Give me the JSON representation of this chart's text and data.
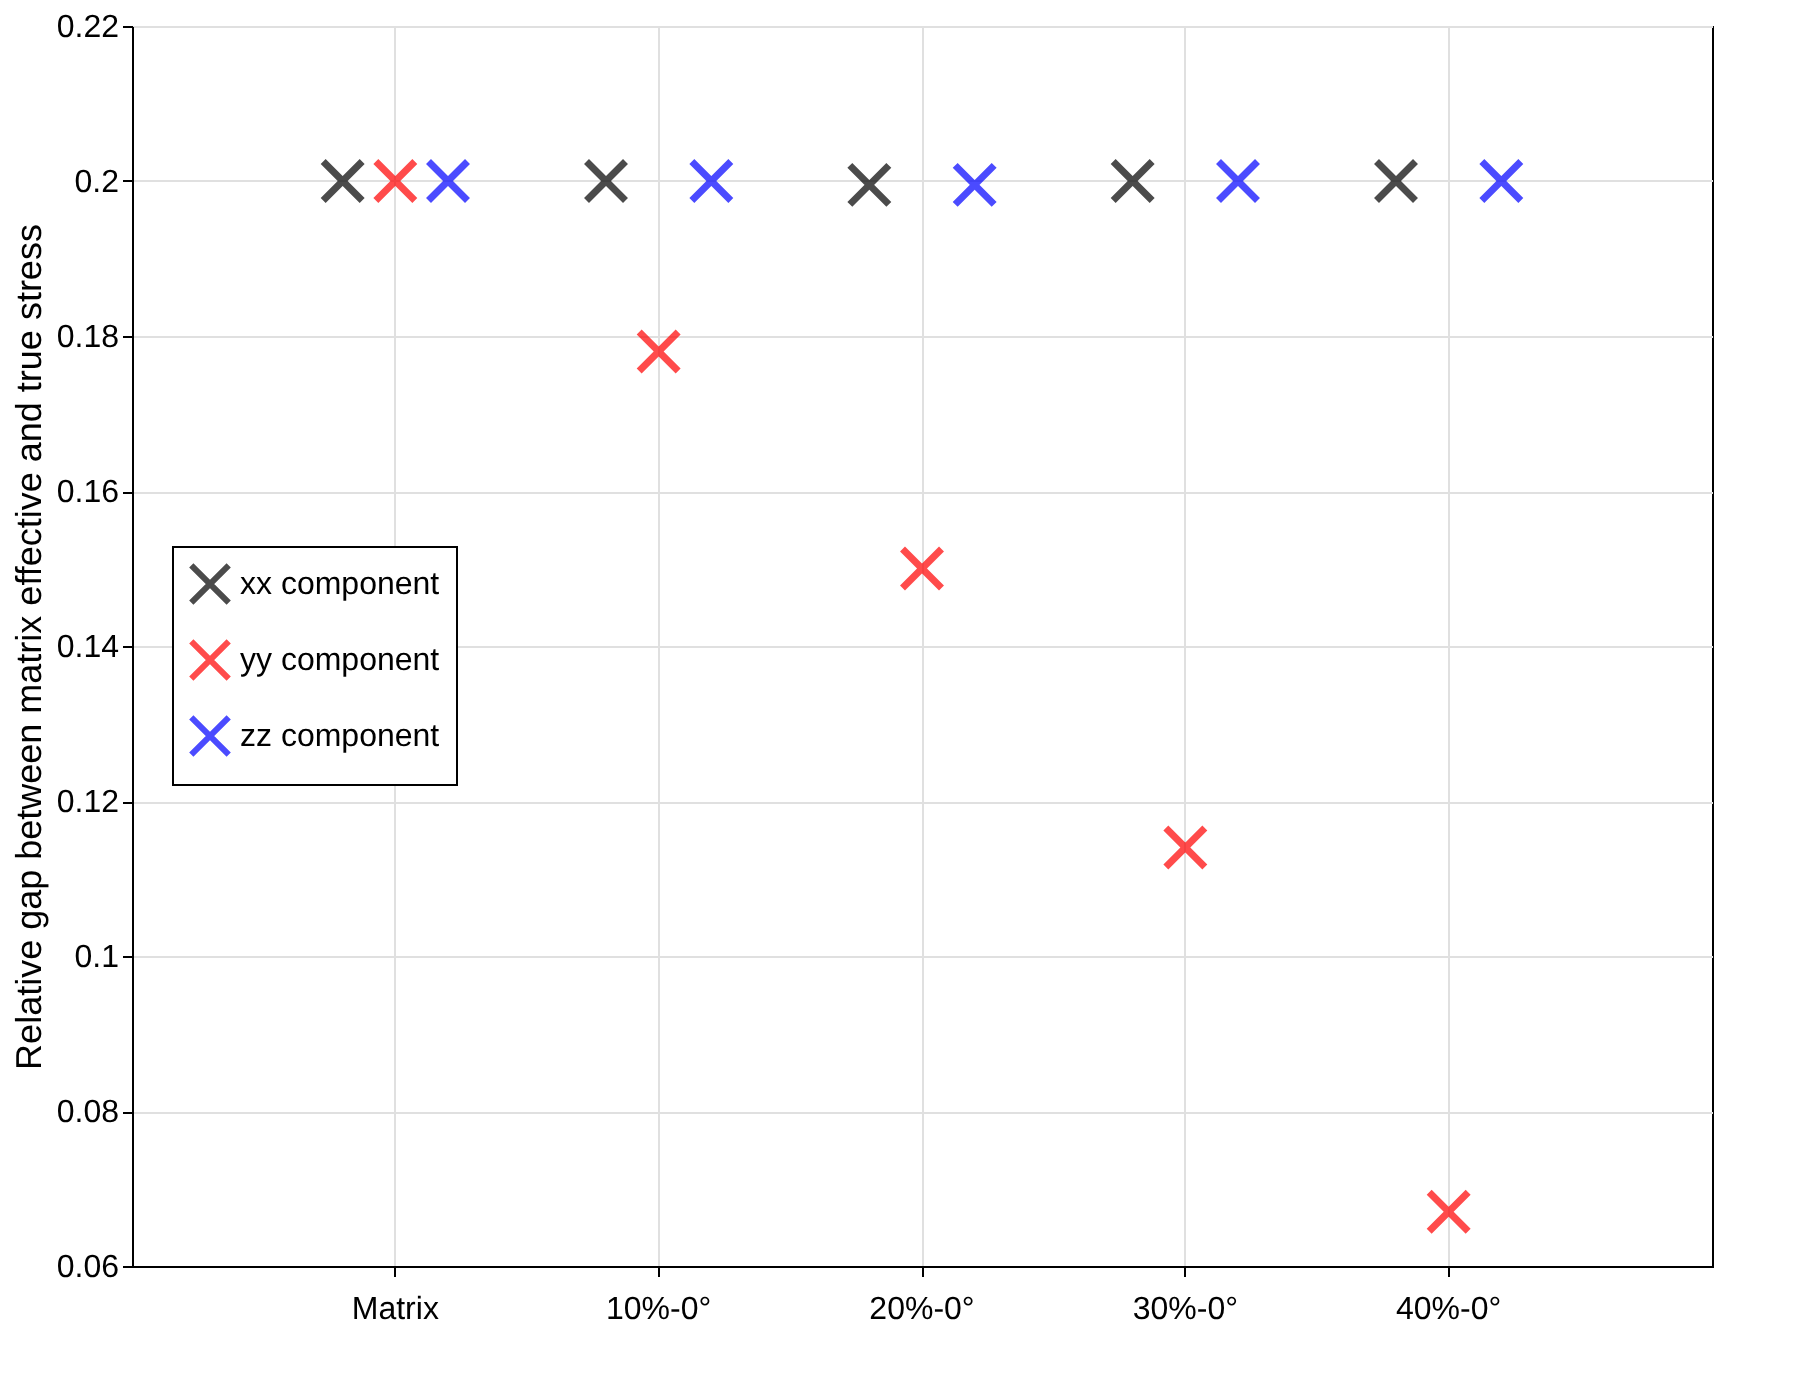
{
  "chart_data": {
    "type": "scatter",
    "ylabel": "Relative gap between matrix effective and true stress",
    "categories": [
      "Matrix",
      "10%-0°",
      "20%-0°",
      "30%-0°",
      "40%-0°"
    ],
    "series": [
      {
        "name": "xx component",
        "color": "#000000",
        "values": [
          0.2,
          0.2,
          0.1995,
          0.2,
          0.2
        ]
      },
      {
        "name": "yy component",
        "color": "#ff0000",
        "values": [
          0.2,
          0.178,
          0.15,
          0.114,
          0.067
        ]
      },
      {
        "name": "zz component",
        "color": "#0000ff",
        "values": [
          0.2,
          0.2,
          0.1995,
          0.2,
          0.2
        ]
      }
    ],
    "ylim": [
      0.06,
      0.22
    ],
    "yticks": [
      0.06,
      0.08,
      0.1,
      0.12,
      0.14,
      0.16,
      0.18,
      0.2,
      0.22
    ],
    "grid": true,
    "legend": "left",
    "marker": "cross"
  }
}
